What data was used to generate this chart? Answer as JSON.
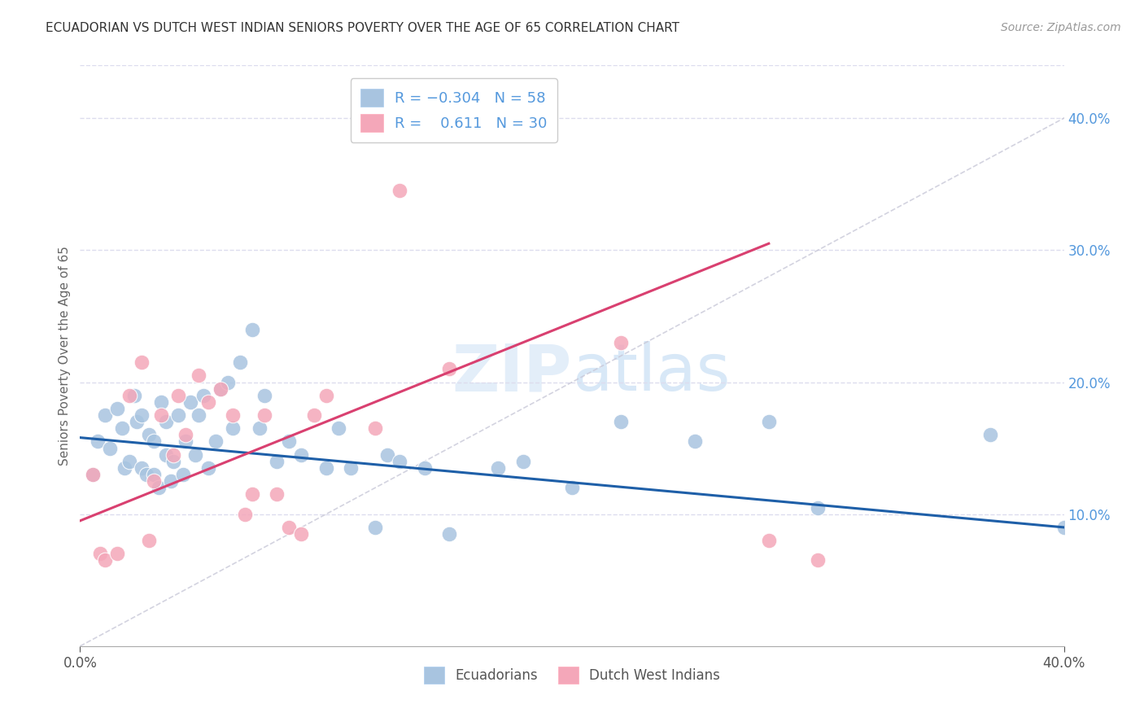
{
  "title": "ECUADORIAN VS DUTCH WEST INDIAN SENIORS POVERTY OVER THE AGE OF 65 CORRELATION CHART",
  "source": "Source: ZipAtlas.com",
  "ylabel": "Seniors Poverty Over the Age of 65",
  "xlim": [
    0.0,
    0.4
  ],
  "ylim": [
    0.0,
    0.44
  ],
  "y_ticks_right": [
    0.1,
    0.2,
    0.3,
    0.4
  ],
  "color_blue": "#a8c4e0",
  "color_pink": "#f4a7b9",
  "color_blue_line": "#1e5fa8",
  "color_pink_line": "#d94070",
  "color_diag": "#c8c8d8",
  "color_title": "#333333",
  "color_right_axis": "#5599dd",
  "color_grid": "#ddddee",
  "blue_scatter_x": [
    0.005,
    0.007,
    0.01,
    0.012,
    0.015,
    0.017,
    0.018,
    0.02,
    0.022,
    0.023,
    0.025,
    0.025,
    0.027,
    0.028,
    0.03,
    0.03,
    0.032,
    0.033,
    0.035,
    0.035,
    0.037,
    0.038,
    0.04,
    0.042,
    0.043,
    0.045,
    0.047,
    0.048,
    0.05,
    0.052,
    0.055,
    0.057,
    0.06,
    0.062,
    0.065,
    0.07,
    0.073,
    0.075,
    0.08,
    0.085,
    0.09,
    0.1,
    0.105,
    0.11,
    0.12,
    0.125,
    0.13,
    0.14,
    0.15,
    0.17,
    0.18,
    0.2,
    0.22,
    0.25,
    0.28,
    0.3,
    0.37,
    0.4
  ],
  "blue_scatter_y": [
    0.13,
    0.155,
    0.175,
    0.15,
    0.18,
    0.165,
    0.135,
    0.14,
    0.19,
    0.17,
    0.135,
    0.175,
    0.13,
    0.16,
    0.13,
    0.155,
    0.12,
    0.185,
    0.145,
    0.17,
    0.125,
    0.14,
    0.175,
    0.13,
    0.155,
    0.185,
    0.145,
    0.175,
    0.19,
    0.135,
    0.155,
    0.195,
    0.2,
    0.165,
    0.215,
    0.24,
    0.165,
    0.19,
    0.14,
    0.155,
    0.145,
    0.135,
    0.165,
    0.135,
    0.09,
    0.145,
    0.14,
    0.135,
    0.085,
    0.135,
    0.14,
    0.12,
    0.17,
    0.155,
    0.17,
    0.105,
    0.16,
    0.09
  ],
  "pink_scatter_x": [
    0.005,
    0.008,
    0.01,
    0.015,
    0.02,
    0.025,
    0.028,
    0.03,
    0.033,
    0.038,
    0.04,
    0.043,
    0.048,
    0.052,
    0.057,
    0.062,
    0.067,
    0.07,
    0.075,
    0.08,
    0.085,
    0.09,
    0.095,
    0.1,
    0.12,
    0.13,
    0.15,
    0.22,
    0.28,
    0.3
  ],
  "pink_scatter_y": [
    0.13,
    0.07,
    0.065,
    0.07,
    0.19,
    0.215,
    0.08,
    0.125,
    0.175,
    0.145,
    0.19,
    0.16,
    0.205,
    0.185,
    0.195,
    0.175,
    0.1,
    0.115,
    0.175,
    0.115,
    0.09,
    0.085,
    0.175,
    0.19,
    0.165,
    0.345,
    0.21,
    0.23,
    0.08,
    0.065
  ],
  "blue_line_x": [
    0.0,
    0.4
  ],
  "blue_line_y": [
    0.158,
    0.09
  ],
  "pink_line_x": [
    0.0,
    0.28
  ],
  "pink_line_y": [
    0.095,
    0.305
  ],
  "background_color": "#ffffff"
}
